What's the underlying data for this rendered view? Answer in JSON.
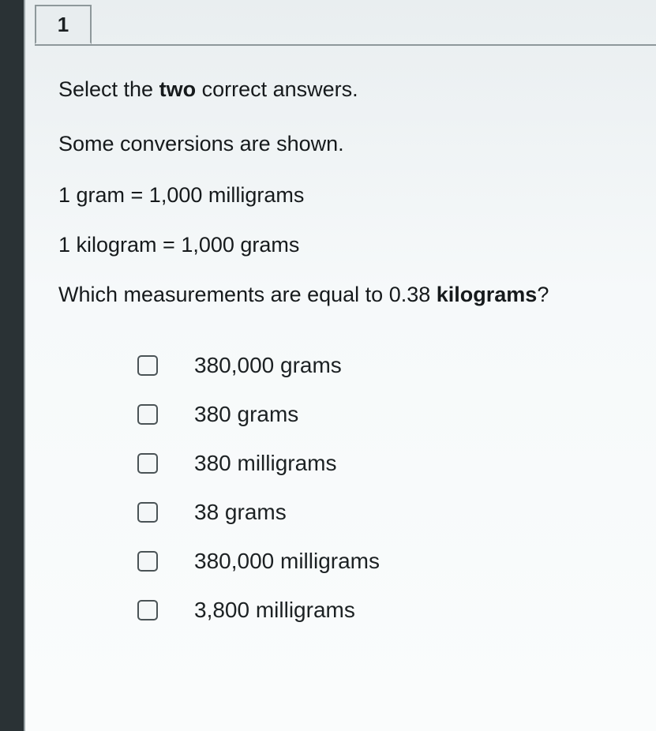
{
  "question_number": "1",
  "instruction_pre": "Select the ",
  "instruction_bold": "two",
  "instruction_post": " correct answers.",
  "context": "Some conversions are shown.",
  "conversion1": "1 gram = 1,000 milligrams",
  "conversion2": "1 kilogram = 1,000 grams",
  "prompt_pre": "Which measurements are equal to 0.38 ",
  "prompt_bold": "kilograms",
  "prompt_post": "?",
  "choices": [
    "380,000 grams",
    "380 grams",
    "380 milligrams",
    "38 grams",
    "380,000 milligrams",
    "3,800 milligrams"
  ],
  "colors": {
    "page_bg": "#f6f9fa",
    "outer_bg": "#2a3235",
    "border": "#8e989b",
    "text": "#161a1c"
  }
}
